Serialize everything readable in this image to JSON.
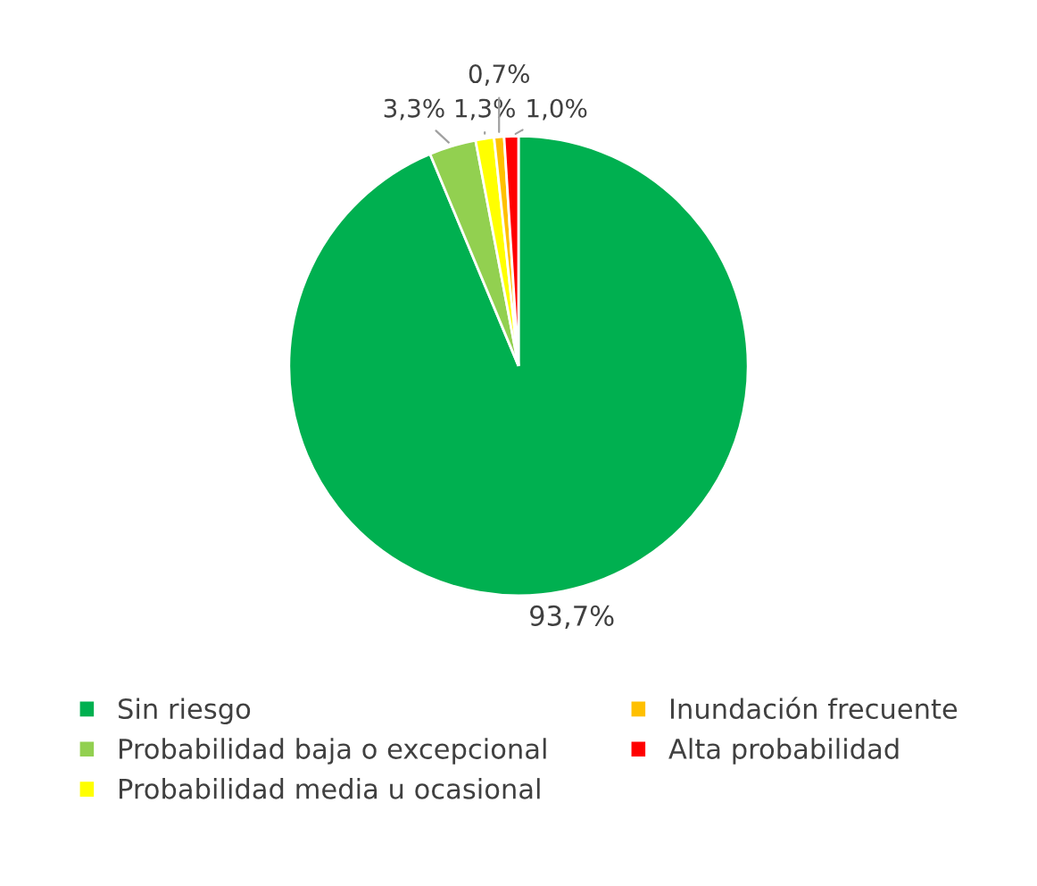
{
  "chart_data": {
    "type": "pie",
    "categories": [
      "Sin riesgo",
      "Probabilidad baja o excepcional",
      "Probabilidad media u ocasional",
      "Inundación frecuente",
      "Alta probabilidad"
    ],
    "values": [
      93.7,
      3.3,
      1.3,
      0.7,
      1.0
    ],
    "colors": [
      "#00b050",
      "#92d050",
      "#ffff00",
      "#ffc000",
      "#ff0000"
    ],
    "value_labels": [
      "93,7%",
      "3,3%",
      "1,3%",
      "0,7%",
      "1,0%"
    ],
    "legend": "bottom"
  }
}
